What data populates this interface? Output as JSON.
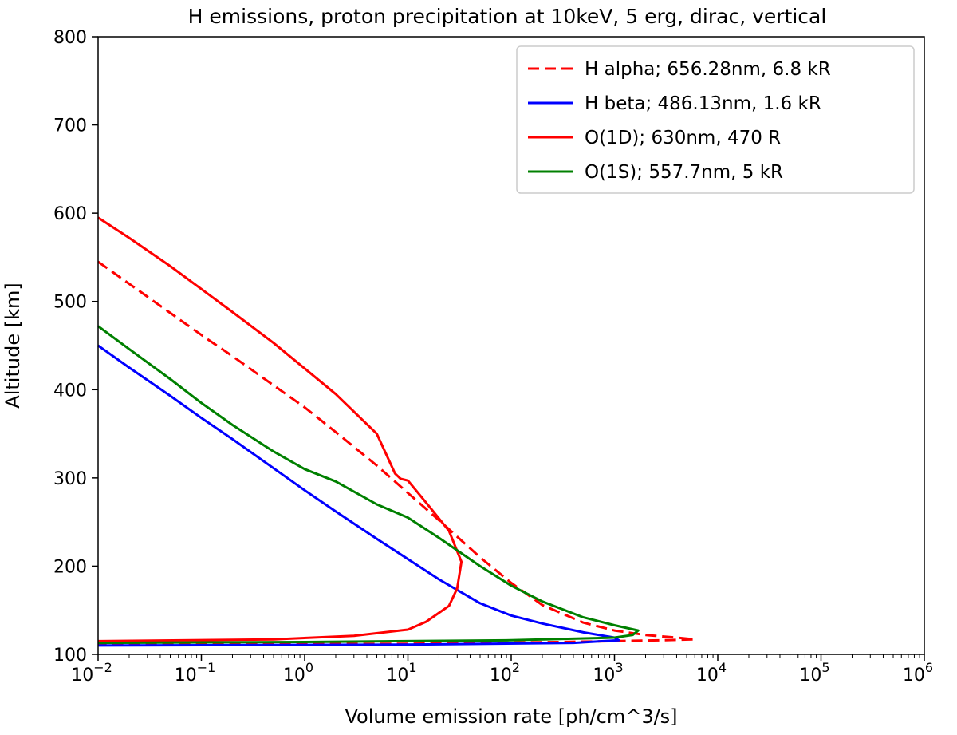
{
  "chart_data": {
    "type": "line",
    "title": "H emissions, proton precipitation at 10keV, 5 erg, dirac, vertical",
    "xlabel": "Volume emission rate [ph/cm^3/s]",
    "ylabel": "Altitude [km]",
    "xscale": "log",
    "xlim": [
      0.01,
      1000000
    ],
    "ylim": [
      100,
      800
    ],
    "grid": false,
    "legend_position": "top-right",
    "x_ticks": [
      {
        "base": "10",
        "exp": "−2"
      },
      {
        "base": "10",
        "exp": "−1"
      },
      {
        "base": "10",
        "exp": "0"
      },
      {
        "base": "10",
        "exp": "1"
      },
      {
        "base": "10",
        "exp": "2"
      },
      {
        "base": "10",
        "exp": "3"
      },
      {
        "base": "10",
        "exp": "4"
      },
      {
        "base": "10",
        "exp": "5"
      },
      {
        "base": "10",
        "exp": "6"
      }
    ],
    "y_ticks": [
      "100",
      "200",
      "300",
      "400",
      "500",
      "600",
      "700",
      "800"
    ],
    "series": [
      {
        "name": "H alpha; 656.28nm, 6.8 kR",
        "color": "#ff0000",
        "dash": "dashed",
        "points": [
          [
            0.01,
            545
          ],
          [
            0.02,
            520
          ],
          [
            0.05,
            487
          ],
          [
            0.1,
            462
          ],
          [
            0.2,
            438
          ],
          [
            0.5,
            405
          ],
          [
            1,
            380
          ],
          [
            2,
            352
          ],
          [
            5,
            314
          ],
          [
            10,
            283
          ],
          [
            20,
            252
          ],
          [
            50,
            210
          ],
          [
            100,
            181
          ],
          [
            200,
            156
          ],
          [
            500,
            136
          ],
          [
            1000,
            127
          ],
          [
            2000,
            122
          ],
          [
            4000,
            119
          ],
          [
            5900,
            117
          ],
          [
            3000,
            116
          ],
          [
            300,
            114
          ],
          [
            10,
            112
          ],
          [
            0.01,
            111
          ]
        ]
      },
      {
        "name": "H beta; 486.13nm, 1.6 kR",
        "color": "#0000ff",
        "dash": "solid",
        "points": [
          [
            0.01,
            450
          ],
          [
            0.02,
            425
          ],
          [
            0.05,
            393
          ],
          [
            0.1,
            368
          ],
          [
            0.2,
            344
          ],
          [
            0.5,
            311
          ],
          [
            1,
            286
          ],
          [
            2,
            262
          ],
          [
            5,
            231
          ],
          [
            10,
            208
          ],
          [
            20,
            185
          ],
          [
            50,
            158
          ],
          [
            100,
            144
          ],
          [
            200,
            135
          ],
          [
            500,
            125
          ],
          [
            1000,
            119
          ],
          [
            1100,
            116
          ],
          [
            400,
            113
          ],
          [
            10,
            111
          ],
          [
            0.01,
            110
          ]
        ]
      },
      {
        "name": "O(1D); 630nm, 470 R",
        "color": "#ff0000",
        "dash": "solid",
        "points": [
          [
            0.01,
            595
          ],
          [
            0.02,
            572
          ],
          [
            0.05,
            540
          ],
          [
            0.1,
            514
          ],
          [
            0.2,
            488
          ],
          [
            0.5,
            453
          ],
          [
            1,
            424
          ],
          [
            2,
            395
          ],
          [
            5,
            350
          ],
          [
            7.5,
            305
          ],
          [
            8.5,
            299
          ],
          [
            10,
            297
          ],
          [
            15,
            272
          ],
          [
            25,
            240
          ],
          [
            33,
            205
          ],
          [
            30,
            175
          ],
          [
            25,
            155
          ],
          [
            15,
            137
          ],
          [
            10,
            128
          ],
          [
            3,
            121
          ],
          [
            0.5,
            117
          ],
          [
            0.01,
            115
          ]
        ]
      },
      {
        "name": "O(1S); 557.7nm, 5 kR",
        "color": "#008000",
        "dash": "solid",
        "points": [
          [
            0.01,
            472
          ],
          [
            0.02,
            446
          ],
          [
            0.05,
            412
          ],
          [
            0.1,
            385
          ],
          [
            0.2,
            360
          ],
          [
            0.5,
            330
          ],
          [
            1,
            310
          ],
          [
            2,
            296
          ],
          [
            5,
            270
          ],
          [
            10,
            255
          ],
          [
            20,
            232
          ],
          [
            50,
            200
          ],
          [
            100,
            178
          ],
          [
            200,
            160
          ],
          [
            500,
            142
          ],
          [
            1000,
            133
          ],
          [
            1700,
            127
          ],
          [
            1500,
            122
          ],
          [
            1000,
            119
          ],
          [
            100,
            116
          ],
          [
            1,
            114
          ],
          [
            0.01,
            113
          ]
        ]
      }
    ]
  }
}
